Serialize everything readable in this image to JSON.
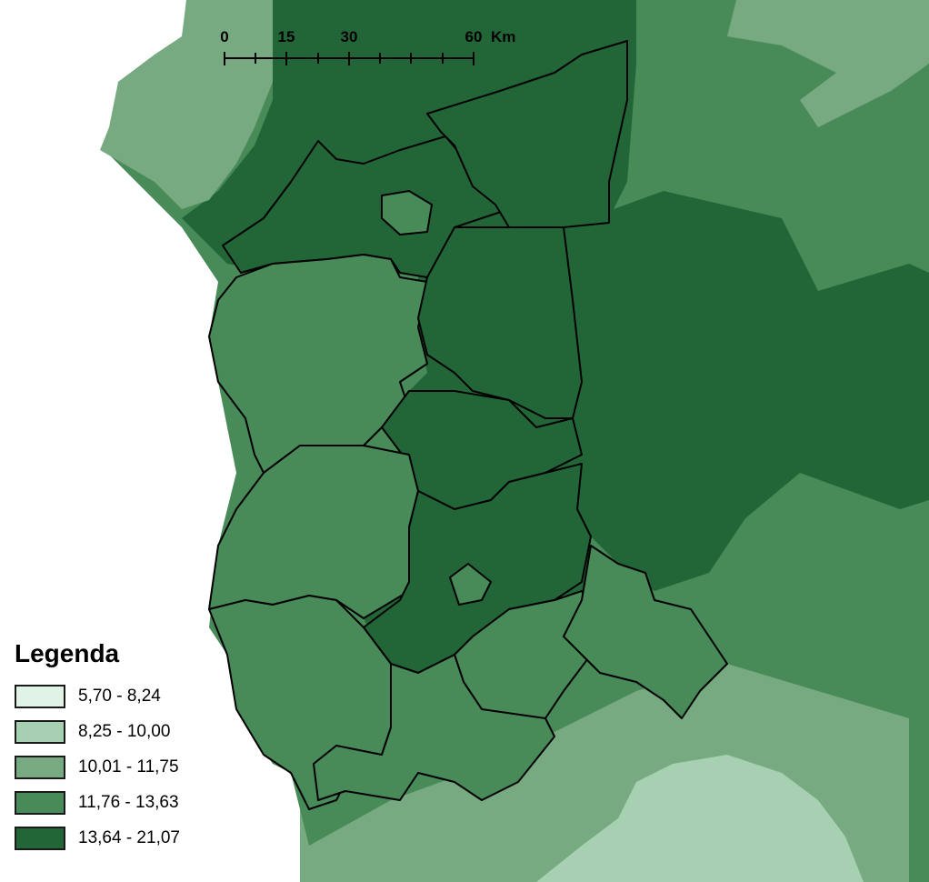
{
  "scale_bar": {
    "ticks": [
      "0",
      "15",
      "30",
      "60"
    ],
    "unit": "Km"
  },
  "legend": {
    "title": "Legenda",
    "classes": [
      {
        "label": "5,70 - 8,24",
        "color": "#dff4e7"
      },
      {
        "label": "8,25 - 10,00",
        "color": "#a6d0b1"
      },
      {
        "label": "10,01 - 11,75",
        "color": "#77aa80"
      },
      {
        "label": "11,76 - 13,63",
        "color": "#488a58"
      },
      {
        "label": "13,64 - 21,07",
        "color": "#226637"
      }
    ]
  }
}
